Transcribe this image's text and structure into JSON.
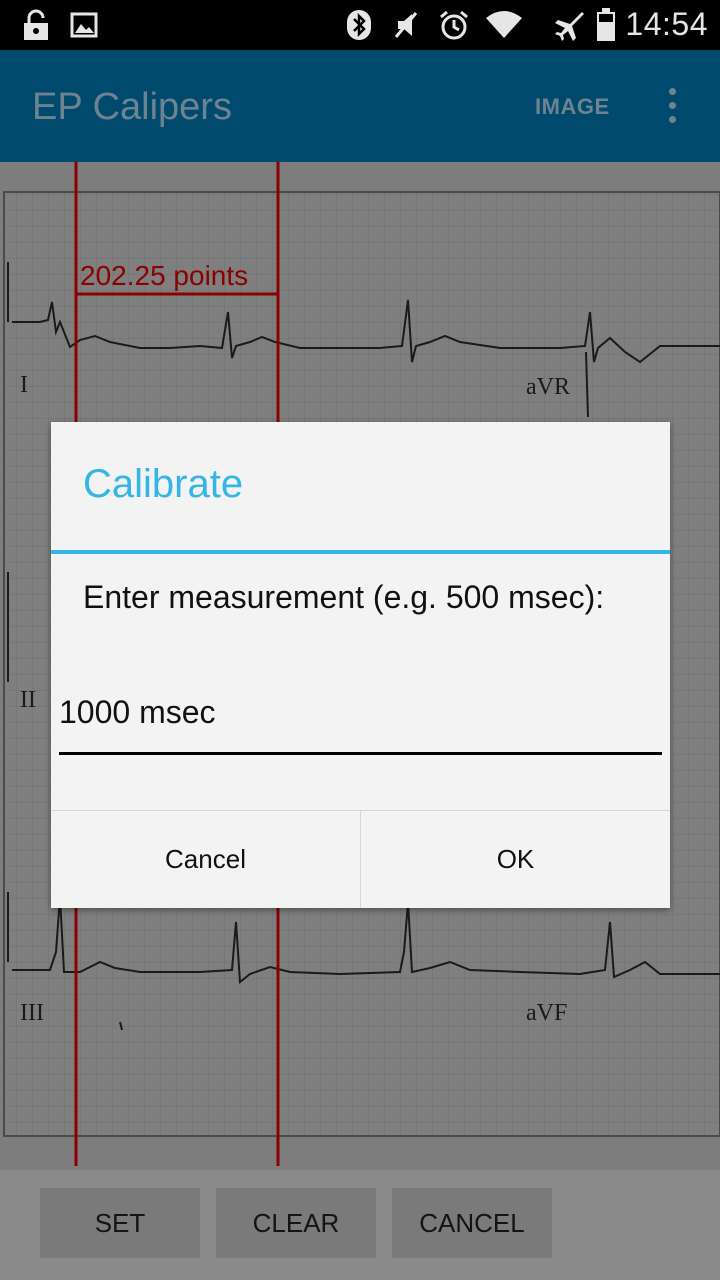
{
  "status_bar": {
    "time": "14:54",
    "icons": [
      "lock-open-icon",
      "image-icon",
      "bluetooth-icon",
      "mute-icon",
      "alarm-icon",
      "wifi-icon",
      "airplane-mode-icon",
      "battery-icon"
    ]
  },
  "action_bar": {
    "title": "EP Calipers",
    "image_label": "IMAGE",
    "overflow_icon": "more-vert-icon"
  },
  "ecg": {
    "measurement_label": "202.25 points",
    "lead_labels": [
      "I",
      "aVR",
      "II",
      "III",
      "aVF"
    ]
  },
  "dialog": {
    "title": "Calibrate",
    "message": "Enter measurement (e.g. 500 msec):",
    "input_value": "1000 msec",
    "cancel_label": "Cancel",
    "ok_label": "OK"
  },
  "bottom_bar": {
    "set_label": "SET",
    "clear_label": "CLEAR",
    "cancel_label": "CANCEL"
  },
  "colors": {
    "accent": "#33b5e5",
    "action_bar": "#004a6e",
    "caliper": "#8b0000"
  }
}
